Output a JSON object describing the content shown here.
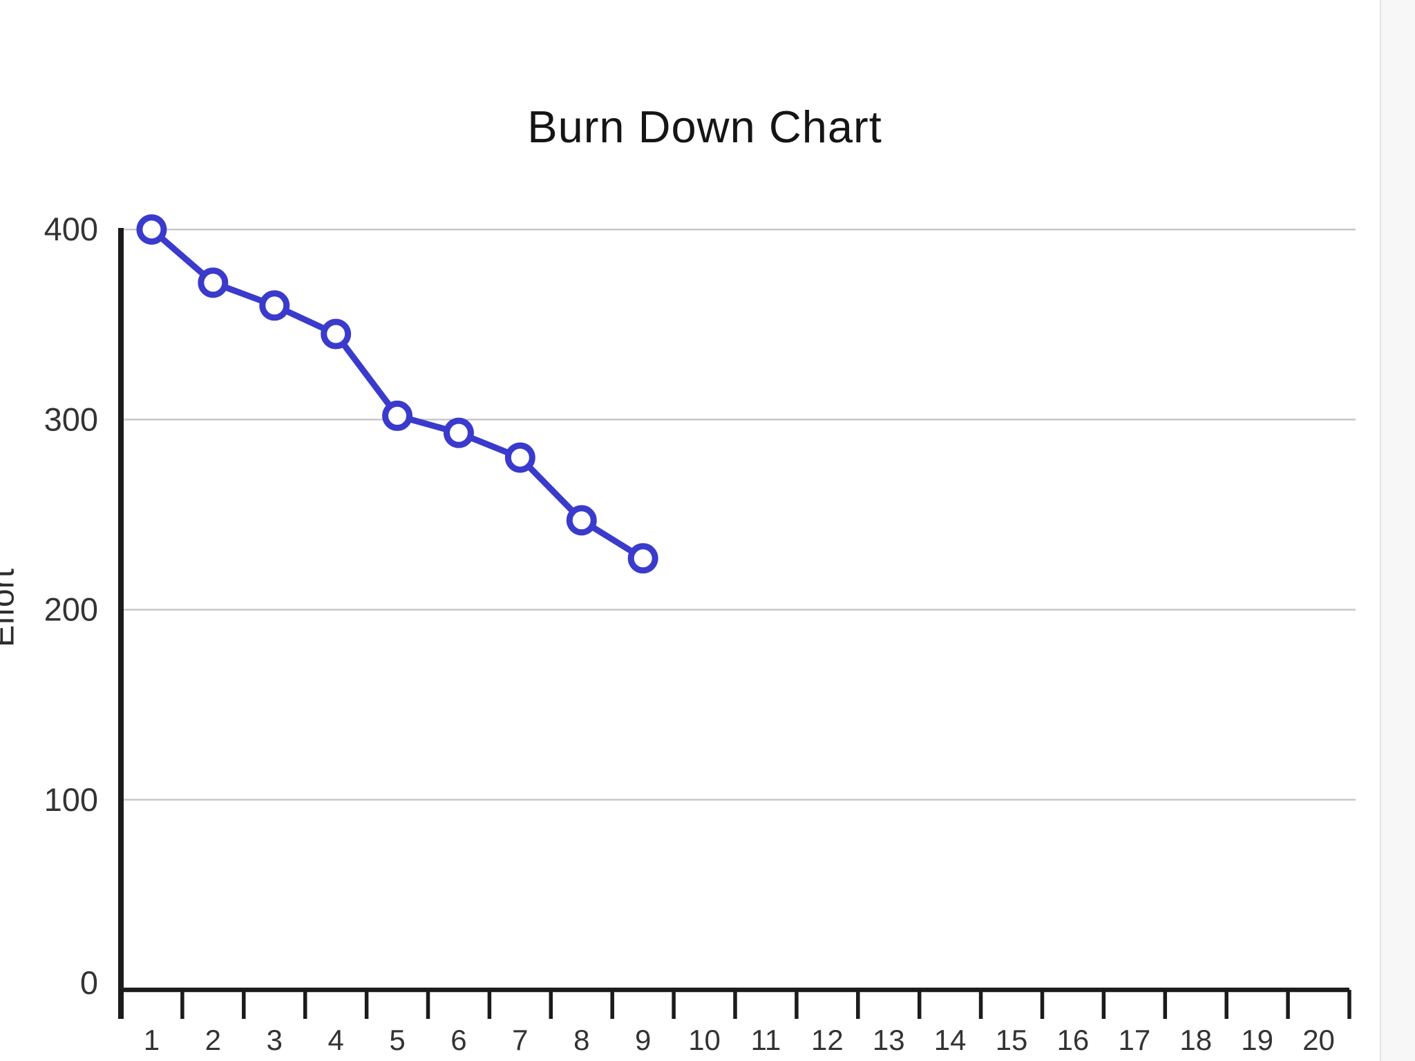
{
  "chart_data": {
    "type": "line",
    "title": "Burn Down Chart",
    "xlabel": "",
    "ylabel": "Effort",
    "x": [
      1,
      2,
      3,
      4,
      5,
      6,
      7,
      8,
      9
    ],
    "series": [
      {
        "name": "Effort",
        "values": [
          400,
          372,
          360,
          345,
          302,
          293,
          280,
          247,
          227
        ]
      }
    ],
    "x_ticks": [
      "1",
      "2",
      "3",
      "4",
      "5",
      "6",
      "7",
      "8",
      "9",
      "10",
      "11",
      "12",
      "13",
      "14",
      "15",
      "16",
      "17",
      "18",
      "19",
      "20"
    ],
    "y_ticks": [
      0,
      100,
      200,
      300,
      400
    ],
    "xlim": [
      0.5,
      20.5
    ],
    "ylim": [
      0,
      400
    ],
    "grid": "horizontal",
    "legend_position": "none",
    "marker_style": "open-circle"
  },
  "colors": {
    "line": "#3a3acc",
    "marker_fill": "#ffffff",
    "grid": "#c7c7c7",
    "axis": "#1b1b1b",
    "tick_text": "#333333",
    "title_text": "#151515",
    "background": "#ffffff",
    "right_band": "#f7f7f7"
  }
}
